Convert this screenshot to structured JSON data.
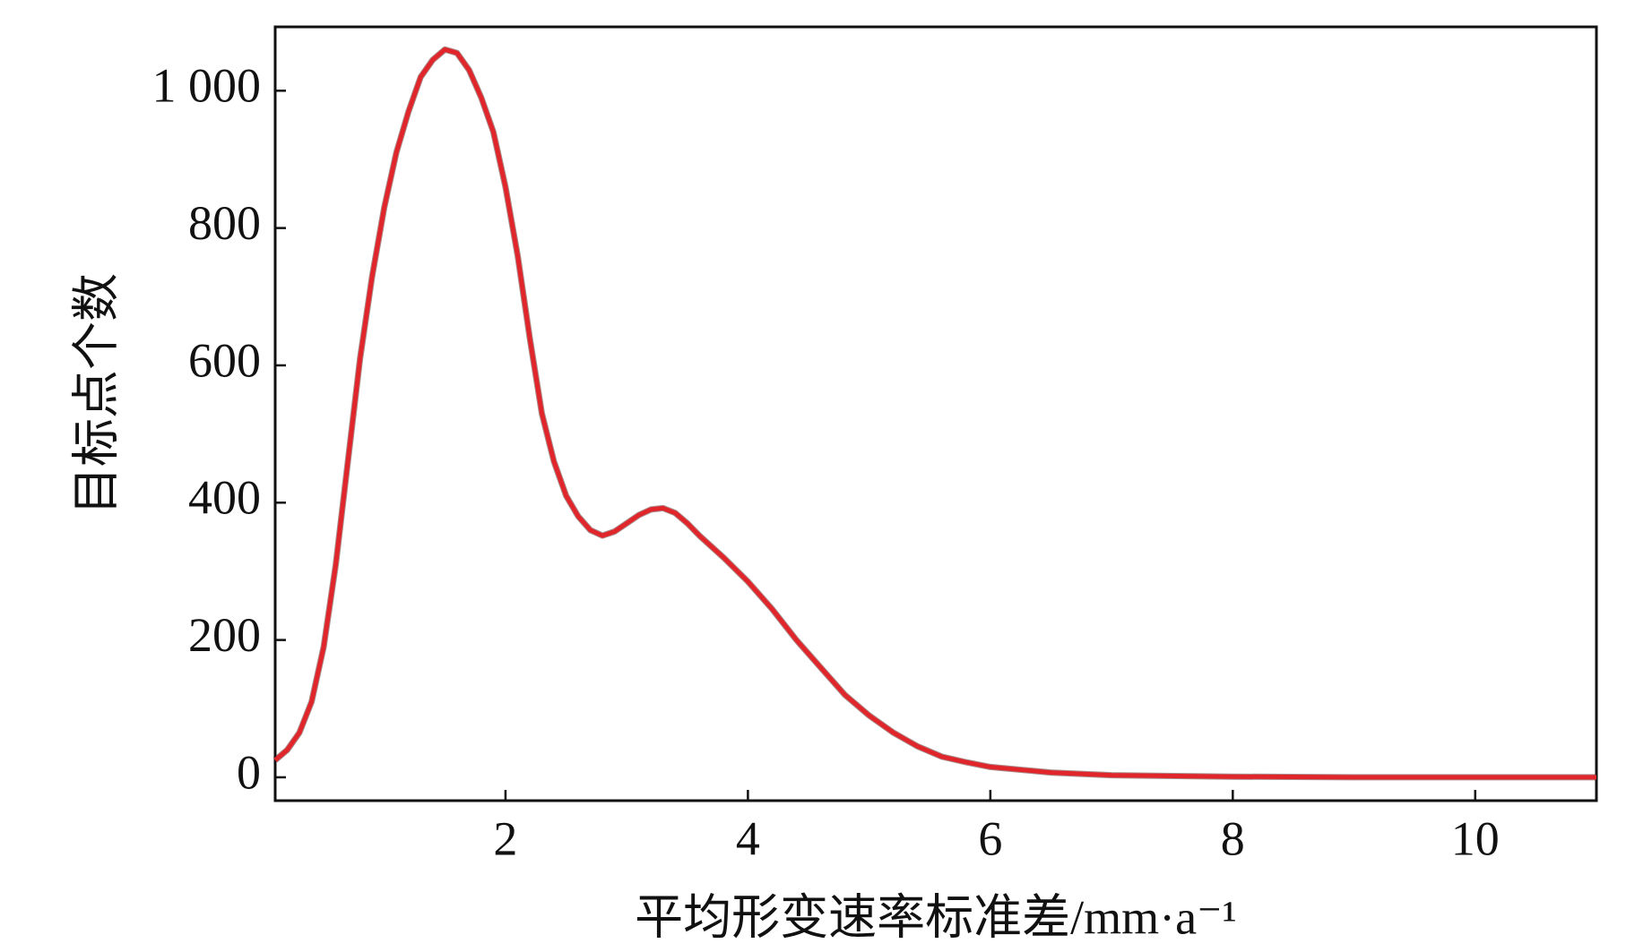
{
  "chart_data": {
    "type": "line",
    "ylabel": "目标点个数",
    "xlabel": "平均形变速率标准差/mm·a⁻¹",
    "x": [
      0.1,
      0.2,
      0.3,
      0.4,
      0.5,
      0.6,
      0.7,
      0.8,
      0.9,
      1.0,
      1.1,
      1.2,
      1.3,
      1.4,
      1.5,
      1.6,
      1.7,
      1.8,
      1.9,
      2.0,
      2.1,
      2.2,
      2.3,
      2.4,
      2.5,
      2.6,
      2.7,
      2.8,
      2.9,
      3.0,
      3.1,
      3.2,
      3.3,
      3.4,
      3.5,
      3.6,
      3.8,
      4.0,
      4.2,
      4.4,
      4.6,
      4.8,
      5.0,
      5.2,
      5.4,
      5.6,
      5.8,
      6.0,
      6.5,
      7.0,
      8.0,
      9.0,
      10.0,
      11.0
    ],
    "series": [
      {
        "color": "#e0262b",
        "values": [
          25,
          40,
          65,
          110,
          190,
          310,
          460,
          610,
          730,
          830,
          910,
          970,
          1020,
          1045,
          1060,
          1055,
          1030,
          990,
          940,
          860,
          760,
          640,
          530,
          460,
          410,
          380,
          360,
          352,
          358,
          370,
          382,
          390,
          392,
          385,
          370,
          352,
          320,
          285,
          245,
          200,
          160,
          120,
          90,
          65,
          45,
          30,
          22,
          15,
          7,
          3,
          1,
          0,
          0,
          0
        ]
      }
    ],
    "xlim": [
      0.1,
      11
    ],
    "ylim": [
      -34,
      1093
    ],
    "xticks": [
      2,
      4,
      6,
      8,
      10
    ],
    "yticks": [
      0,
      200,
      400,
      600,
      800,
      {
        "value": 1000,
        "label": "1 000"
      }
    ]
  }
}
